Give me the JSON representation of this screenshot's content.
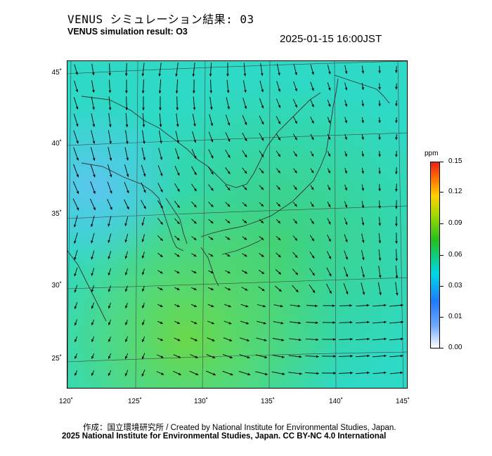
{
  "title_jp": "VENUS シミュレーション結果: 03",
  "title_en": "VENUS simulation result: O3",
  "timestamp": "2025-01-15 16:00JST",
  "map": {
    "lat_labels": [
      "45˚",
      "40˚",
      "35˚",
      "30˚",
      "25˚"
    ],
    "lon_labels": [
      "120˚",
      "125˚",
      "130˚",
      "135˚",
      "140˚",
      "145˚"
    ],
    "colors": {
      "field_base": "#2fd8c8",
      "field_high": "#3ccf74",
      "coast": "#333333",
      "arrow": "#000000"
    }
  },
  "colorbar": {
    "unit": "ppm",
    "labels": [
      "0.15",
      "0.12",
      "0.09",
      "0.06",
      "0.03",
      "0.01",
      "0.00"
    ],
    "values": [
      0.15,
      0.12,
      0.09,
      0.06,
      0.03,
      0.01,
      0.0
    ]
  },
  "credit": "作成：国立環境研究所 / Created by National Institute for Environmental Studies, Japan.",
  "license": "2025 National Institute for Environmental Studies, Japan. CC BY-NC 4.0 International"
}
